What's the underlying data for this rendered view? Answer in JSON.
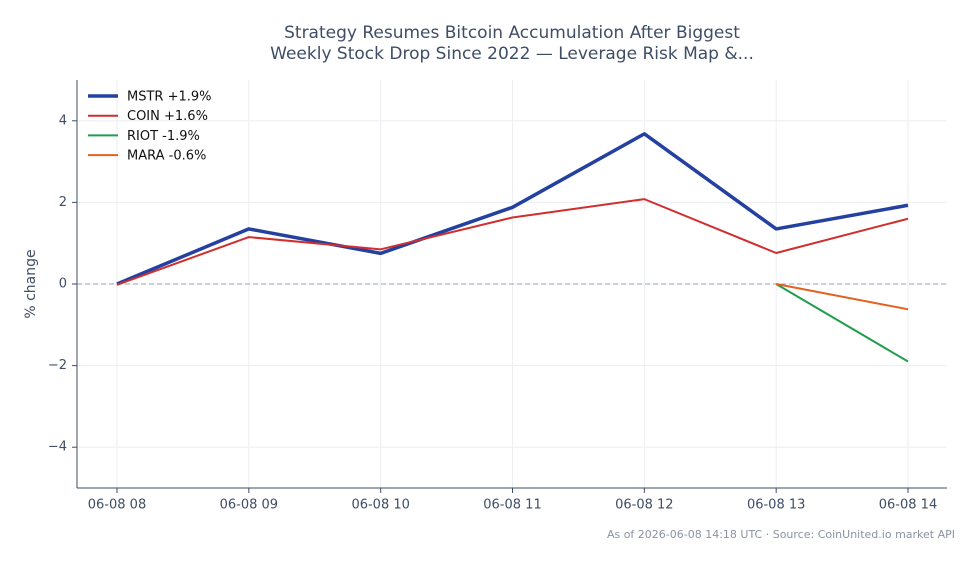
{
  "chart_data": {
    "type": "line",
    "title": [
      "Strategy Resumes Bitcoin Accumulation After Biggest",
      "Weekly Stock Drop Since 2022 — Leverage Risk Map &..."
    ],
    "y_label": "% change",
    "footer": "As of 2026-06-08 14:18 UTC · Source: CoinUnited.io market API",
    "categories": [
      "06-08 08",
      "06-08 09",
      "06-08 10",
      "06-08 11",
      "06-08 12",
      "06-08 13",
      "06-08 14"
    ],
    "series": [
      {
        "name": "MSTR +1.9%",
        "color": "#2440a0",
        "line_width": 3.5,
        "values": [
          0,
          1.35,
          0.75,
          1.88,
          3.68,
          1.35,
          1.93
        ]
      },
      {
        "name": "COIN +1.6%",
        "color": "#d12e2e",
        "line_width": 2,
        "values": [
          -0.02,
          1.15,
          0.85,
          1.63,
          2.08,
          0.76,
          1.6
        ]
      },
      {
        "name": "RIOT -1.9%",
        "color": "#1f9e4c",
        "line_width": 2,
        "values": [
          null,
          null,
          null,
          null,
          null,
          0,
          -1.9
        ]
      },
      {
        "name": "MARA -0.6%",
        "color": "#e4601e",
        "line_width": 2,
        "values": [
          null,
          null,
          null,
          null,
          null,
          0,
          -0.62
        ]
      }
    ],
    "ylim": [
      -5,
      5
    ],
    "yticks": [
      {
        "value": -4,
        "label": "−4"
      },
      {
        "value": -2,
        "label": "−2"
      },
      0,
      2,
      4
    ],
    "grid": true,
    "zero_line": true,
    "legend": "upper left"
  }
}
